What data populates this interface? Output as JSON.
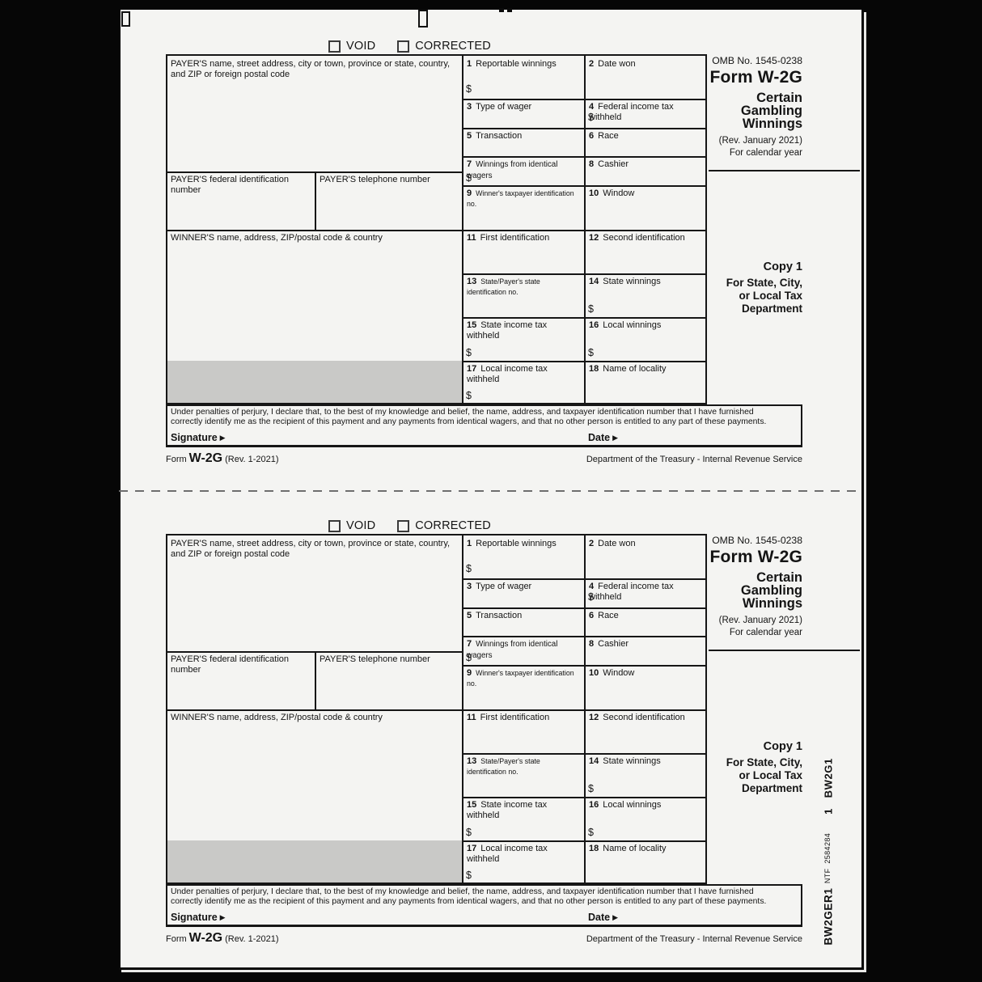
{
  "colors": {
    "paper": "#f4f4f2",
    "shaded_cell": "#c9c9c7",
    "scan_background": "#060606"
  },
  "form": {
    "void_label": "VOID",
    "corrected_label": "CORRECTED",
    "omb": "OMB No. 1545-0238",
    "form_title": "Form W-2G",
    "subtitle_l1": "Certain",
    "subtitle_l2": "Gambling",
    "subtitle_l3": "Winnings",
    "rev_note": "(Rev. January 2021)",
    "cal_year": "For calendar year",
    "copy_label": "Copy 1",
    "copy_for_l1": "For State, City,",
    "copy_for_l2": "or Local Tax",
    "copy_for_l3": "Department",
    "payer_label": "PAYER'S name, street address, city or town, province or state, country, and ZIP or foreign postal code",
    "payer_fed_label": "PAYER'S federal identification number",
    "payer_phone_label": "PAYER'S telephone number",
    "winner_label": "WINNER'S name, address, ZIP/postal code & country",
    "dollar": "$",
    "fields": {
      "f1": {
        "n": "1",
        "label": "Reportable winnings"
      },
      "f2": {
        "n": "2",
        "label": "Date won"
      },
      "f3": {
        "n": "3",
        "label": "Type of wager"
      },
      "f4": {
        "n": "4",
        "label": "Federal income tax withheld"
      },
      "f5": {
        "n": "5",
        "label": "Transaction"
      },
      "f6": {
        "n": "6",
        "label": "Race"
      },
      "f7": {
        "n": "7",
        "label": "Winnings from identical wagers"
      },
      "f8": {
        "n": "8",
        "label": "Cashier"
      },
      "f9": {
        "n": "9",
        "label": "Winner's taxpayer identification no."
      },
      "f10": {
        "n": "10",
        "label": "Window"
      },
      "f11": {
        "n": "11",
        "label": "First identification"
      },
      "f12": {
        "n": "12",
        "label": "Second identification"
      },
      "f13": {
        "n": "13",
        "label": "State/Payer's state identification no."
      },
      "f14": {
        "n": "14",
        "label": "State winnings"
      },
      "f15": {
        "n": "15",
        "label": "State income tax withheld"
      },
      "f16": {
        "n": "16",
        "label": "Local winnings"
      },
      "f17": {
        "n": "17",
        "label": "Local income tax withheld"
      },
      "f18": {
        "n": "18",
        "label": "Name of locality"
      }
    },
    "perjury_l1": "Under penalties of perjury, I declare that, to the best of my knowledge and belief, the name, address, and taxpayer identification number that I have furnished",
    "perjury_l2": "correctly identify me as the recipient of this payment and any payments from identical wagers, and that no other person is entitled to any part of these payments.",
    "signature_label": "Signature",
    "date_label": "Date",
    "arrow": "▶",
    "footer_form_word": "Form",
    "footer_form_number": "W-2G",
    "footer_rev": "(Rev. 1-2021)",
    "footer_dept": "Department of the Treasury - Internal Revenue Service"
  },
  "side_codes": {
    "top_code": "1   BW2G1",
    "mid_code": "NTF  2584284",
    "bottom_code": "BW2GER1"
  }
}
